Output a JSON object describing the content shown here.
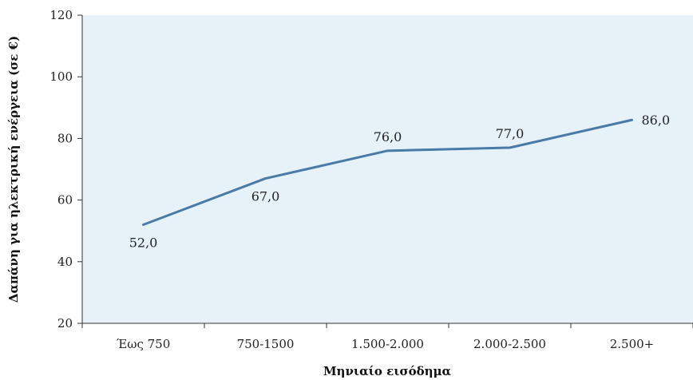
{
  "chart_data": {
    "type": "line",
    "categories": [
      "Έως 750",
      "750-1500",
      "1.500-2.000",
      "2.000-2.500",
      "2.500+"
    ],
    "series": [
      {
        "values": [
          52.0,
          67.0,
          76.0,
          77.0,
          86.0
        ],
        "color": "#4a7ba6"
      }
    ],
    "data_labels": [
      "52,0",
      "67,0",
      "76,0",
      "77,0",
      "86,0"
    ],
    "xlabel": "Μηνιαίο εισόδημα",
    "ylabel": "Δαπάνη για ηλεκτρική ενέργεια (σε €)",
    "ylim": [
      20,
      120
    ],
    "yticks": [
      20,
      40,
      60,
      80,
      100,
      120
    ],
    "plot_background": "#e6f1f8",
    "grid": false,
    "legend": "none"
  }
}
